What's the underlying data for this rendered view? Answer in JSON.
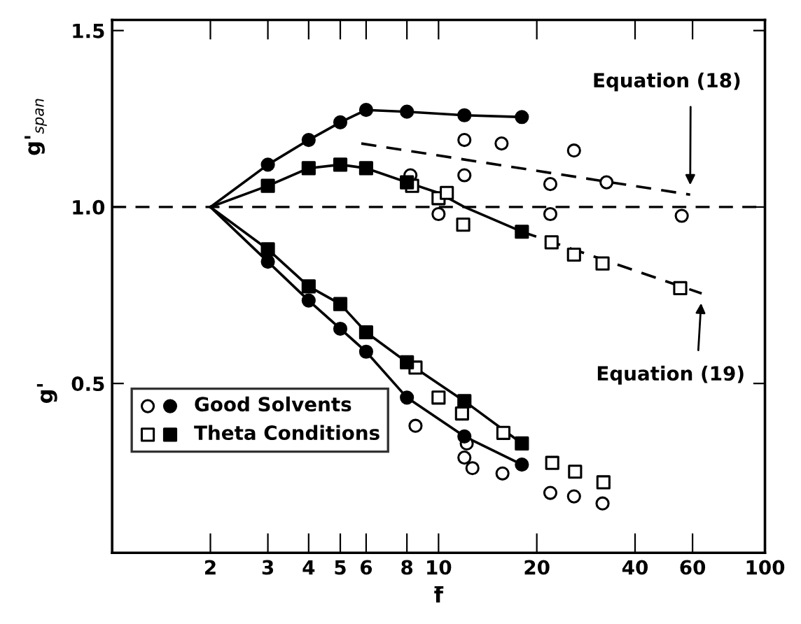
{
  "chart_data": {
    "type": "scatter",
    "xlabel": "f̄",
    "ylabel": "g'$_{span}$",
    "log": "x",
    "xlim": [
      1,
      100
    ],
    "ylim": [
      0.02,
      1.53
    ],
    "xticks": [
      2,
      3,
      4,
      5,
      6,
      8,
      10,
      20,
      40,
      60,
      100
    ],
    "yticks": [
      {
        "value": 0.5,
        "label": "0.5"
      },
      {
        "value": 1.0,
        "label": "1.0"
      },
      {
        "value": 1.5,
        "label": "1.5"
      }
    ],
    "grid": false,
    "legend": "bottom left",
    "ref_lines": [
      {
        "axis": "y",
        "value": 1.0,
        "line_style": "dashed",
        "color": "#000000"
      }
    ],
    "annotations": [
      "g'",
      {
        "text": "Equation (18)",
        "x": 59,
        "y": 1.035
      },
      {
        "text": "Equation (19)",
        "x": 64,
        "y": 0.755
      }
    ],
    "series": [
      {
        "type": "line",
        "marker": "none",
        "line_style": "solid",
        "color": "#000000",
        "x": [
          2,
          3,
          4,
          5,
          6,
          8,
          12,
          18
        ],
        "values": [
          1.0,
          1.12,
          1.19,
          1.24,
          1.275,
          1.27,
          1.26,
          1.255
        ]
      },
      {
        "type": "line",
        "marker": "none",
        "line_style": "solid",
        "color": "#000000",
        "x": [
          2,
          3,
          4,
          5,
          6,
          8,
          10,
          12,
          18
        ],
        "values": [
          1.0,
          1.06,
          1.11,
          1.12,
          1.11,
          1.07,
          1.04,
          1.0,
          0.93
        ]
      },
      {
        "type": "line",
        "marker": "none",
        "line_style": "solid",
        "color": "#000000",
        "x": [
          2,
          3,
          4,
          5,
          6,
          8,
          12,
          18
        ],
        "values": [
          1.0,
          0.88,
          0.775,
          0.725,
          0.645,
          0.56,
          0.45,
          0.33
        ]
      },
      {
        "type": "line",
        "marker": "none",
        "line_style": "solid",
        "color": "#000000",
        "x": [
          2,
          3,
          4,
          5,
          6,
          8,
          12,
          18
        ],
        "values": [
          1.0,
          0.845,
          0.735,
          0.655,
          0.59,
          0.46,
          0.35,
          0.27
        ]
      },
      {
        "type": "line",
        "marker": "none",
        "line_style": "dashed",
        "color": "#000000",
        "x": [
          5.8,
          59
        ],
        "values": [
          1.18,
          1.035
        ]
      },
      {
        "type": "line",
        "marker": "none",
        "line_style": "dashed",
        "color": "#000000",
        "x": [
          18,
          64
        ],
        "values": [
          0.93,
          0.755
        ]
      },
      {
        "marker": "circle",
        "color": "#ffffff",
        "x": [
          8.2,
          10,
          12,
          12,
          15.6,
          22,
          22,
          26,
          32.7,
          55.6,
          8.5,
          12.2,
          12,
          12.7,
          15.7,
          22,
          26,
          31.8
        ],
        "values": [
          1.09,
          0.98,
          1.09,
          1.19,
          1.18,
          1.065,
          0.98,
          1.16,
          1.07,
          0.975,
          0.38,
          0.33,
          0.29,
          0.26,
          0.245,
          0.19,
          0.18,
          0.16
        ]
      },
      {
        "marker": "circle",
        "color": "#000000",
        "name": "Good Solvents",
        "x": [
          3,
          4,
          5,
          6,
          8,
          12,
          18,
          3,
          4,
          5,
          6,
          8,
          12,
          18
        ],
        "values": [
          1.12,
          1.19,
          1.24,
          1.275,
          1.27,
          1.26,
          1.255,
          0.845,
          0.735,
          0.655,
          0.59,
          0.46,
          0.35,
          0.27
        ]
      },
      {
        "marker": "square",
        "color": "#ffffff",
        "x": [
          8.3,
          10,
          10.6,
          11.9,
          22.2,
          26,
          31.8,
          55,
          8.5,
          10,
          11.8,
          15.8,
          22.3,
          26.2,
          32
        ],
        "values": [
          1.06,
          1.025,
          1.04,
          0.95,
          0.9,
          0.865,
          0.84,
          0.77,
          0.545,
          0.46,
          0.415,
          0.36,
          0.275,
          0.25,
          0.22
        ]
      },
      {
        "marker": "square",
        "color": "#000000",
        "name": "Theta Conditions",
        "x": [
          3,
          4,
          5,
          6,
          8,
          18,
          3,
          4,
          5,
          6,
          8,
          12,
          18
        ],
        "values": [
          1.06,
          1.11,
          1.12,
          1.11,
          1.07,
          0.93,
          0.88,
          0.775,
          0.725,
          0.645,
          0.56,
          0.45,
          0.33
        ]
      }
    ]
  }
}
